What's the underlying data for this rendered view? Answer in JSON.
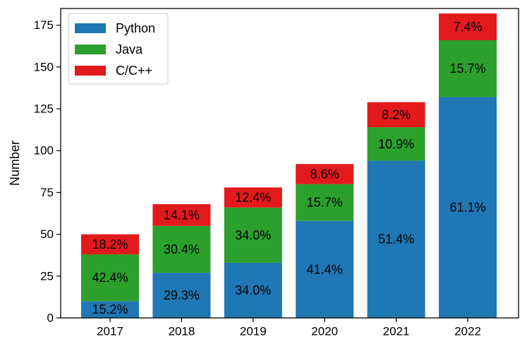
{
  "chart_data": {
    "type": "bar",
    "stacked": true,
    "title": "",
    "xlabel": "",
    "ylabel": "Number",
    "ylim": [
      0,
      185
    ],
    "yticks": [
      0,
      25,
      50,
      75,
      100,
      125,
      150,
      175
    ],
    "categories": [
      "2017",
      "2018",
      "2019",
      "2020",
      "2021",
      "2022"
    ],
    "series": [
      {
        "name": "Python",
        "color": "#1f77b4",
        "values": [
          10,
          27,
          33,
          58,
          94,
          132
        ],
        "labels": [
          "15.2%",
          "29.3%",
          "34.0%",
          "41.4%",
          "51.4%",
          "61.1%"
        ]
      },
      {
        "name": "Java",
        "color": "#2ca02c",
        "values": [
          28,
          28,
          33,
          22,
          20,
          34
        ],
        "labels": [
          "42.4%",
          "30.4%",
          "34.0%",
          "15.7%",
          "10.9%",
          "15.7%"
        ]
      },
      {
        "name": "C/C++",
        "color": "#e31a1c",
        "values": [
          12,
          13,
          12,
          12,
          15,
          16
        ],
        "labels": [
          "18.2%",
          "14.1%",
          "12.4%",
          "8.6%",
          "8.2%",
          "7.4%"
        ]
      }
    ],
    "legend_position": "top-left",
    "grid": false
  }
}
